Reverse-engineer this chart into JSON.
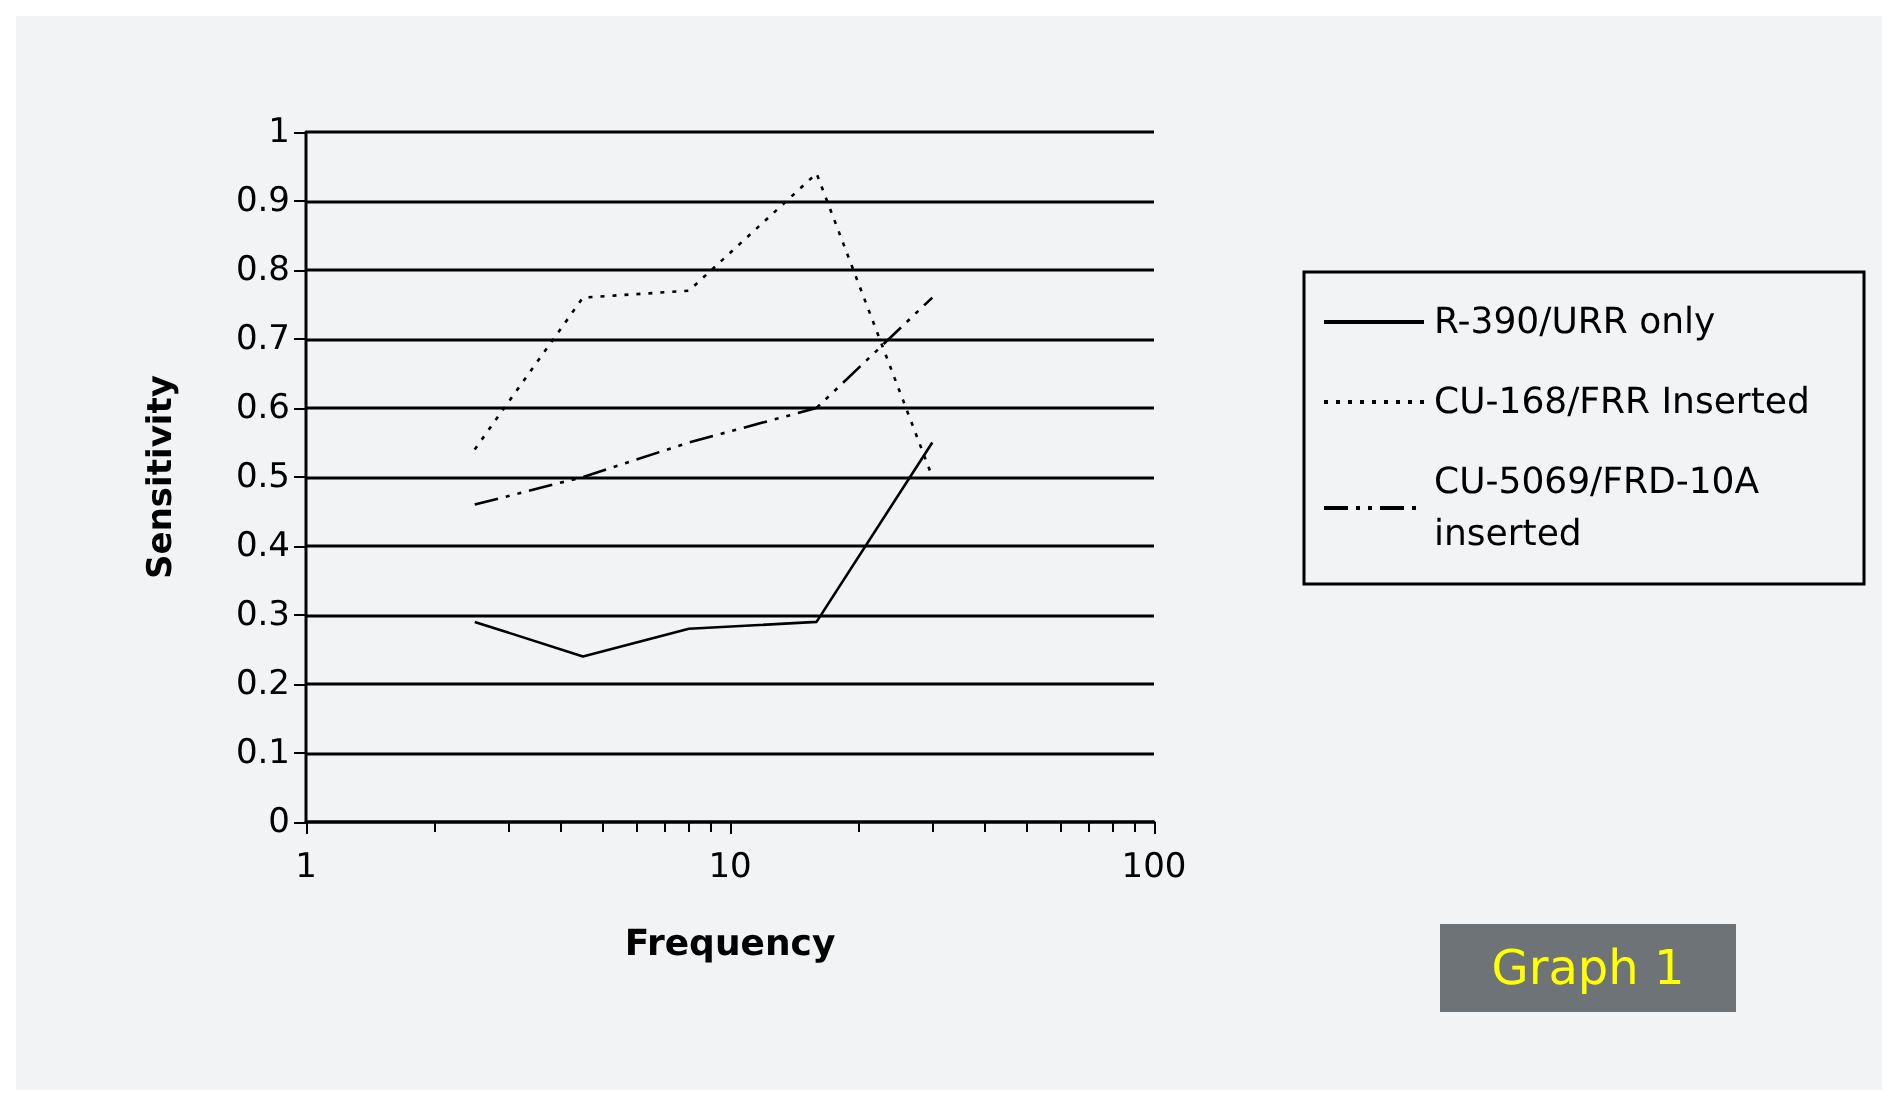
{
  "chart_data": {
    "type": "line",
    "xlabel": "Frequency",
    "ylabel": "Sensitivity",
    "x": [
      2.5,
      4.5,
      8,
      16,
      30
    ],
    "series": [
      {
        "name": "R-390/URR only",
        "color": "#000000",
        "line_style": "solid",
        "values": [
          0.29,
          0.24,
          0.28,
          0.29,
          0.55
        ]
      },
      {
        "name": "CU-168/FRR Inserted",
        "color": "#000000",
        "line_style": "dotted",
        "values": [
          0.54,
          0.76,
          0.77,
          0.94,
          0.5
        ]
      },
      {
        "name": "CU-5069/FRD-10A inserted",
        "color": "#000000",
        "line_style": "dashed",
        "values": [
          0.46,
          0.5,
          0.55,
          0.6,
          0.76
        ]
      }
    ],
    "log": "x",
    "xlim": [
      1,
      100
    ],
    "xticks": [
      1,
      10,
      100
    ],
    "ylim": [
      0,
      1
    ],
    "yticks": [
      0,
      0.1,
      0.2,
      0.3,
      0.4,
      0.5,
      0.6,
      0.7,
      0.8,
      0.9,
      1
    ],
    "grid": "y",
    "legend": "right",
    "marker": "none",
    "annotations": [
      "Graph 1"
    ]
  }
}
